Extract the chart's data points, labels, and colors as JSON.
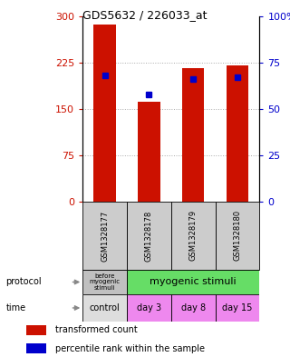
{
  "title": "GDS5632 / 226033_at",
  "samples": [
    "GSM1328177",
    "GSM1328178",
    "GSM1328179",
    "GSM1328180"
  ],
  "transformed_counts": [
    287,
    162,
    216,
    220
  ],
  "percentile_ranks_pct": [
    68,
    58,
    66,
    67
  ],
  "left_yticks": [
    0,
    75,
    150,
    225,
    300
  ],
  "right_yticklabels": [
    "0",
    "25",
    "50",
    "75",
    "100%"
  ],
  "bar_color": "#cc1100",
  "dot_color": "#0000cc",
  "protocol_labels": [
    "before\nmyogenic\nstimuli",
    "myogenic stimuli"
  ],
  "protocol_colors": [
    "#c0c0c0",
    "#66dd66"
  ],
  "time_labels": [
    "control",
    "day 3",
    "day 8",
    "day 15"
  ],
  "time_colors": [
    "#dddddd",
    "#ee88ee",
    "#ee88ee",
    "#ee88ee"
  ],
  "sample_bg": "#cccccc",
  "legend_items": [
    "transformed count",
    "percentile rank within the sample"
  ],
  "left_ycolor": "#cc1100",
  "right_ycolor": "#0000cc",
  "bg_color": "#ffffff"
}
